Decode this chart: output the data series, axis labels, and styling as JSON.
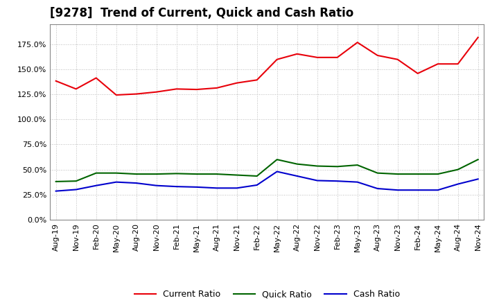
{
  "title": "[9278]  Trend of Current, Quick and Cash Ratio",
  "x_labels": [
    "Aug-19",
    "Nov-19",
    "Feb-20",
    "May-20",
    "Aug-20",
    "Nov-20",
    "Feb-21",
    "May-21",
    "Aug-21",
    "Nov-21",
    "Feb-22",
    "May-22",
    "Aug-22",
    "Nov-22",
    "Feb-23",
    "May-23",
    "Aug-23",
    "Nov-23",
    "Feb-24",
    "May-24",
    "Aug-24",
    "Nov-24"
  ],
  "current_ratio": [
    1.385,
    1.305,
    1.415,
    1.245,
    1.255,
    1.275,
    1.305,
    1.3,
    1.315,
    1.365,
    1.395,
    1.6,
    1.655,
    1.62,
    1.62,
    1.77,
    1.64,
    1.6,
    1.46,
    1.555,
    1.555,
    1.82
  ],
  "quick_ratio": [
    0.38,
    0.385,
    0.465,
    0.465,
    0.455,
    0.455,
    0.46,
    0.455,
    0.455,
    0.445,
    0.435,
    0.6,
    0.555,
    0.535,
    0.53,
    0.545,
    0.465,
    0.455,
    0.455,
    0.455,
    0.5,
    0.6
  ],
  "cash_ratio": [
    0.285,
    0.3,
    0.34,
    0.375,
    0.365,
    0.34,
    0.33,
    0.325,
    0.315,
    0.315,
    0.345,
    0.48,
    0.435,
    0.39,
    0.385,
    0.375,
    0.31,
    0.295,
    0.295,
    0.295,
    0.355,
    0.405
  ],
  "current_color": "#e8000a",
  "quick_color": "#006400",
  "cash_color": "#0000cd",
  "ylim_min": 0.0,
  "ylim_max": 1.95,
  "ytick_values": [
    0.0,
    0.25,
    0.5,
    0.75,
    1.0,
    1.25,
    1.5,
    1.75
  ],
  "ytick_labels": [
    "0.0%",
    "25.0%",
    "50.0%",
    "75.0%",
    "100.0%",
    "125.0%",
    "150.0%",
    "175.0%"
  ],
  "background_color": "#ffffff",
  "grid_color": "#bbbbbb",
  "title_fontsize": 12,
  "axis_fontsize": 8,
  "legend_labels": [
    "Current Ratio",
    "Quick Ratio",
    "Cash Ratio"
  ],
  "legend_fontsize": 9
}
